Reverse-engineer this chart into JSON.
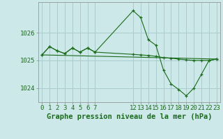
{
  "background_color": "#cce8e8",
  "grid_color": "#aacccc",
  "line_color": "#1a6b1a",
  "marker_color": "#1a6b1a",
  "title": "Graphe pression niveau de la mer (hPa)",
  "title_fontsize": 7.5,
  "tick_fontsize": 6.5,
  "series": [
    {
      "x": [
        0,
        1,
        2,
        3,
        4,
        5,
        6,
        7,
        12,
        13,
        14,
        15,
        16,
        17,
        18,
        19,
        20,
        21,
        22,
        23
      ],
      "y": [
        1025.2,
        1025.5,
        1025.35,
        1025.25,
        1025.45,
        1025.3,
        1025.45,
        1025.3,
        1026.8,
        1026.55,
        1025.75,
        1025.55,
        1024.65,
        1024.15,
        1023.95,
        1023.72,
        1024.0,
        1024.5,
        1025.0,
        1025.05
      ],
      "has_markers": true
    },
    {
      "x": [
        0,
        1,
        2,
        3,
        4,
        5,
        6,
        7,
        12,
        13,
        14,
        15,
        16,
        17,
        18,
        19,
        20,
        21,
        22,
        23
      ],
      "y": [
        1025.2,
        1025.5,
        1025.35,
        1025.25,
        1025.45,
        1025.3,
        1025.45,
        1025.3,
        1025.22,
        1025.2,
        1025.18,
        1025.15,
        1025.1,
        1025.08,
        1025.05,
        1025.02,
        1025.0,
        1025.0,
        1025.0,
        1025.05
      ],
      "has_markers": true
    },
    {
      "x": [
        0,
        23
      ],
      "y": [
        1025.2,
        1025.05
      ],
      "has_markers": false
    }
  ],
  "xlim_data": [
    -0.5,
    23.5
  ],
  "ylim": [
    1023.5,
    1027.1
  ],
  "yticks": [
    1024,
    1025,
    1026
  ],
  "xticks_positions": [
    0,
    1,
    2,
    3,
    4,
    5,
    6,
    7,
    12,
    13,
    14,
    15,
    16,
    17,
    18,
    19,
    20,
    21,
    22,
    23
  ],
  "xtick_labels": [
    "0",
    "1",
    "2",
    "3",
    "4",
    "5",
    "6",
    "7",
    "12",
    "13",
    "14",
    "15",
    "16",
    "17",
    "18",
    "19",
    "20",
    "21",
    "22",
    "23"
  ],
  "fig_width": 3.2,
  "fig_height": 2.0,
  "dpi": 100
}
